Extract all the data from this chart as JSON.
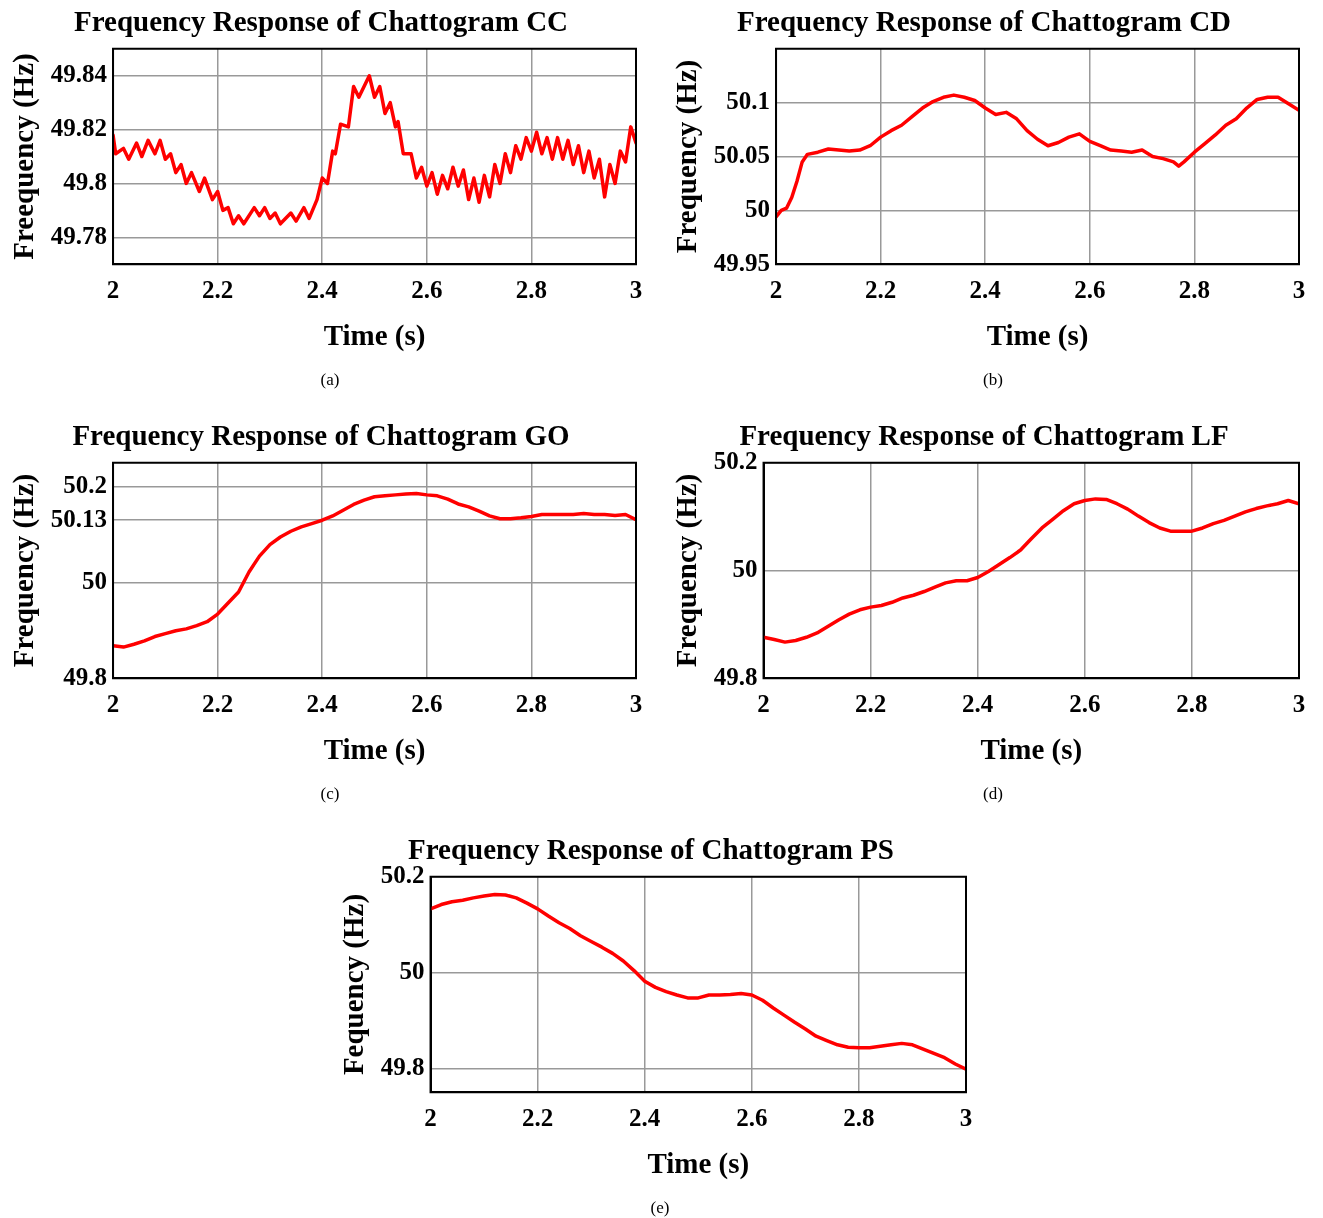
{
  "chart_data": [
    {
      "type": "line",
      "title": "Frequency Response of Chattogram CC",
      "xlabel": "Time (s)",
      "ylabel": "Freequency (Hz)",
      "annotations": [
        "(a)"
      ],
      "color": "#ff0000",
      "grid": true,
      "xlim": [
        2,
        3
      ],
      "xticks": [
        2,
        2.2,
        2.4,
        2.6,
        2.8,
        3
      ],
      "ylim": [
        49.77,
        49.85
      ],
      "yticks": [
        49.78,
        49.8,
        49.82,
        49.84
      ],
      "x": [
        2.0,
        2.005,
        2.02,
        2.03,
        2.045,
        2.055,
        2.067,
        2.08,
        2.09,
        2.1,
        2.11,
        2.12,
        2.13,
        2.14,
        2.15,
        2.165,
        2.175,
        2.19,
        2.2,
        2.21,
        2.22,
        2.23,
        2.24,
        2.25,
        2.27,
        2.28,
        2.29,
        2.3,
        2.31,
        2.32,
        2.34,
        2.35,
        2.365,
        2.375,
        2.39,
        2.4,
        2.41,
        2.42,
        2.425,
        2.435,
        2.45,
        2.46,
        2.47,
        2.49,
        2.5,
        2.51,
        2.52,
        2.53,
        2.54,
        2.545,
        2.555,
        2.57,
        2.58,
        2.59,
        2.6,
        2.61,
        2.62,
        2.63,
        2.64,
        2.65,
        2.66,
        2.67,
        2.68,
        2.69,
        2.7,
        2.71,
        2.72,
        2.73,
        2.74,
        2.75,
        2.76,
        2.77,
        2.78,
        2.79,
        2.8,
        2.81,
        2.82,
        2.83,
        2.84,
        2.85,
        2.86,
        2.87,
        2.88,
        2.89,
        2.9,
        2.91,
        2.92,
        2.93,
        2.94,
        2.95,
        2.96,
        2.97,
        2.98,
        2.99,
        3.0
      ],
      "values": [
        49.818,
        49.811,
        49.813,
        49.809,
        49.815,
        49.81,
        49.816,
        49.811,
        49.816,
        49.809,
        49.811,
        49.804,
        49.807,
        49.8,
        49.804,
        49.797,
        49.802,
        49.794,
        49.797,
        49.79,
        49.791,
        49.785,
        49.788,
        49.785,
        49.791,
        49.788,
        49.791,
        49.787,
        49.789,
        49.785,
        49.789,
        49.786,
        49.791,
        49.787,
        49.794,
        49.802,
        49.8,
        49.812,
        49.811,
        49.822,
        49.821,
        49.836,
        49.832,
        49.84,
        49.832,
        49.836,
        49.826,
        49.83,
        49.821,
        49.823,
        49.811,
        49.811,
        49.802,
        49.806,
        49.799,
        49.804,
        49.796,
        49.803,
        49.798,
        49.806,
        49.799,
        49.805,
        49.794,
        49.802,
        49.793,
        49.803,
        49.795,
        49.807,
        49.8,
        49.811,
        49.804,
        49.814,
        49.809,
        49.817,
        49.812,
        49.819,
        49.811,
        49.817,
        49.809,
        49.817,
        49.809,
        49.816,
        49.807,
        49.814,
        49.804,
        49.812,
        49.802,
        49.809,
        49.795,
        49.807,
        49.8,
        49.812,
        49.808,
        49.821,
        49.815
      ]
    },
    {
      "type": "line",
      "title": "Frequency Response of Chattogram CD",
      "xlabel": "Time (s)",
      "ylabel": "Frequency (Hz)",
      "annotations": [
        "(b)"
      ],
      "color": "#ff0000",
      "grid": true,
      "xlim": [
        2,
        3
      ],
      "xticks": [
        2,
        2.2,
        2.4,
        2.6,
        2.8,
        3
      ],
      "ylim": [
        49.95,
        50.15
      ],
      "yticks": [
        49.95,
        50,
        50.05,
        50.1
      ],
      "x": [
        2.0,
        2.01,
        2.02,
        2.03,
        2.04,
        2.05,
        2.06,
        2.08,
        2.1,
        2.12,
        2.14,
        2.16,
        2.18,
        2.2,
        2.22,
        2.24,
        2.26,
        2.28,
        2.3,
        2.32,
        2.34,
        2.36,
        2.38,
        2.4,
        2.42,
        2.44,
        2.46,
        2.48,
        2.5,
        2.52,
        2.54,
        2.56,
        2.58,
        2.6,
        2.62,
        2.64,
        2.66,
        2.68,
        2.7,
        2.72,
        2.74,
        2.76,
        2.77,
        2.78,
        2.8,
        2.82,
        2.84,
        2.86,
        2.88,
        2.9,
        2.92,
        2.94,
        2.96,
        2.98,
        3.0
      ],
      "values": [
        49.994,
        50.0,
        50.002,
        50.012,
        50.027,
        50.045,
        50.052,
        50.054,
        50.057,
        50.056,
        50.055,
        50.056,
        50.06,
        50.068,
        50.074,
        50.079,
        50.087,
        50.095,
        50.101,
        50.105,
        50.107,
        50.105,
        50.102,
        50.095,
        50.089,
        50.091,
        50.085,
        50.074,
        50.066,
        50.06,
        50.063,
        50.068,
        50.071,
        50.064,
        50.06,
        50.056,
        50.055,
        50.054,
        50.056,
        50.05,
        50.048,
        50.045,
        50.041,
        50.045,
        50.054,
        50.062,
        50.07,
        50.079,
        50.085,
        50.095,
        50.103,
        50.105,
        50.105,
        50.099,
        50.093
      ]
    },
    {
      "type": "line",
      "title": "Frequency Response of Chattogram GO",
      "xlabel": "Time (s)",
      "ylabel": "Frequency (Hz)",
      "annotations": [
        "(c)"
      ],
      "color": "#ff0000",
      "grid": true,
      "xlim": [
        2,
        3
      ],
      "xticks": [
        2,
        2.2,
        2.4,
        2.6,
        2.8,
        3
      ],
      "ylim": [
        49.8,
        50.25
      ],
      "yticks": [
        49.8,
        50,
        50.13,
        50.2
      ],
      "x": [
        2.0,
        2.02,
        2.04,
        2.06,
        2.08,
        2.1,
        2.12,
        2.14,
        2.16,
        2.18,
        2.2,
        2.22,
        2.24,
        2.26,
        2.28,
        2.3,
        2.32,
        2.34,
        2.36,
        2.38,
        2.4,
        2.42,
        2.44,
        2.46,
        2.48,
        2.5,
        2.52,
        2.54,
        2.56,
        2.58,
        2.6,
        2.62,
        2.64,
        2.66,
        2.68,
        2.7,
        2.72,
        2.74,
        2.76,
        2.78,
        2.8,
        2.82,
        2.84,
        2.86,
        2.88,
        2.9,
        2.92,
        2.94,
        2.96,
        2.98,
        3.0
      ],
      "values": [
        49.868,
        49.865,
        49.871,
        49.878,
        49.887,
        49.893,
        49.899,
        49.903,
        49.91,
        49.918,
        49.934,
        49.957,
        49.98,
        50.022,
        50.055,
        50.079,
        50.095,
        50.107,
        50.116,
        50.123,
        50.13,
        50.139,
        50.151,
        50.163,
        50.172,
        50.179,
        50.181,
        50.183,
        50.185,
        50.186,
        50.183,
        50.181,
        50.174,
        50.164,
        50.158,
        50.149,
        50.139,
        50.133,
        50.133,
        50.135,
        50.138,
        50.142,
        50.142,
        50.142,
        50.142,
        50.144,
        50.142,
        50.142,
        50.14,
        50.142,
        50.131
      ]
    },
    {
      "type": "line",
      "title": "Frequency Response of Chattogram LF",
      "xlabel": "Time (s)",
      "ylabel": "Frequency (Hz)",
      "annotations": [
        "(d)"
      ],
      "color": "#ff0000",
      "grid": true,
      "xlim": [
        2,
        3
      ],
      "xticks": [
        2,
        2.2,
        2.4,
        2.6,
        2.8,
        3
      ],
      "ylim": [
        49.8,
        50.2
      ],
      "yticks": [
        49.8,
        50,
        50.2
      ],
      "x": [
        2.0,
        2.02,
        2.04,
        2.06,
        2.08,
        2.1,
        2.12,
        2.14,
        2.16,
        2.18,
        2.2,
        2.22,
        2.24,
        2.26,
        2.28,
        2.3,
        2.32,
        2.34,
        2.36,
        2.38,
        2.4,
        2.42,
        2.44,
        2.46,
        2.48,
        2.5,
        2.52,
        2.54,
        2.56,
        2.58,
        2.6,
        2.62,
        2.64,
        2.66,
        2.68,
        2.7,
        2.72,
        2.74,
        2.76,
        2.78,
        2.8,
        2.82,
        2.84,
        2.86,
        2.88,
        2.9,
        2.92,
        2.94,
        2.96,
        2.98,
        3.0
      ],
      "values": [
        49.876,
        49.872,
        49.867,
        49.87,
        49.876,
        49.884,
        49.896,
        49.908,
        49.919,
        49.927,
        49.932,
        49.935,
        49.941,
        49.949,
        49.954,
        49.961,
        49.969,
        49.977,
        49.981,
        49.981,
        49.987,
        49.998,
        50.011,
        50.024,
        50.038,
        50.059,
        50.079,
        50.095,
        50.111,
        50.124,
        50.13,
        50.133,
        50.132,
        50.124,
        50.114,
        50.101,
        50.089,
        50.079,
        50.073,
        50.073,
        50.073,
        50.079,
        50.087,
        50.093,
        50.101,
        50.109,
        50.115,
        50.12,
        50.124,
        50.13,
        50.124
      ]
    },
    {
      "type": "line",
      "title": "Frequency Response of Chattogram PS",
      "xlabel": "Time (s)",
      "ylabel": "Fequency (Hz)",
      "annotations": [
        "(e)"
      ],
      "color": "#ff0000",
      "grid": true,
      "xlim": [
        2,
        3
      ],
      "xticks": [
        2,
        2.2,
        2.4,
        2.6,
        2.8,
        3
      ],
      "ylim": [
        49.75,
        50.2
      ],
      "yticks": [
        49.8,
        50,
        50.2
      ],
      "x": [
        2.0,
        2.02,
        2.04,
        2.06,
        2.08,
        2.1,
        2.12,
        2.14,
        2.16,
        2.18,
        2.2,
        2.22,
        2.24,
        2.26,
        2.28,
        2.3,
        2.32,
        2.34,
        2.36,
        2.38,
        2.4,
        2.42,
        2.44,
        2.46,
        2.48,
        2.5,
        2.52,
        2.54,
        2.56,
        2.58,
        2.6,
        2.62,
        2.64,
        2.66,
        2.68,
        2.7,
        2.72,
        2.74,
        2.76,
        2.78,
        2.8,
        2.82,
        2.84,
        2.86,
        2.88,
        2.9,
        2.92,
        2.94,
        2.96,
        2.98,
        3.0
      ],
      "values": [
        50.133,
        50.142,
        50.148,
        50.151,
        50.156,
        50.16,
        50.163,
        50.162,
        50.156,
        50.145,
        50.133,
        50.118,
        50.104,
        50.092,
        50.077,
        50.065,
        50.053,
        50.04,
        50.024,
        50.004,
        49.982,
        49.969,
        49.96,
        49.953,
        49.947,
        49.947,
        49.953,
        49.953,
        49.954,
        49.956,
        49.953,
        49.942,
        49.926,
        49.911,
        49.896,
        49.882,
        49.867,
        49.858,
        49.849,
        49.844,
        49.843,
        49.843,
        49.846,
        49.849,
        49.852,
        49.849,
        49.84,
        49.831,
        49.822,
        49.809,
        49.798
      ]
    }
  ]
}
